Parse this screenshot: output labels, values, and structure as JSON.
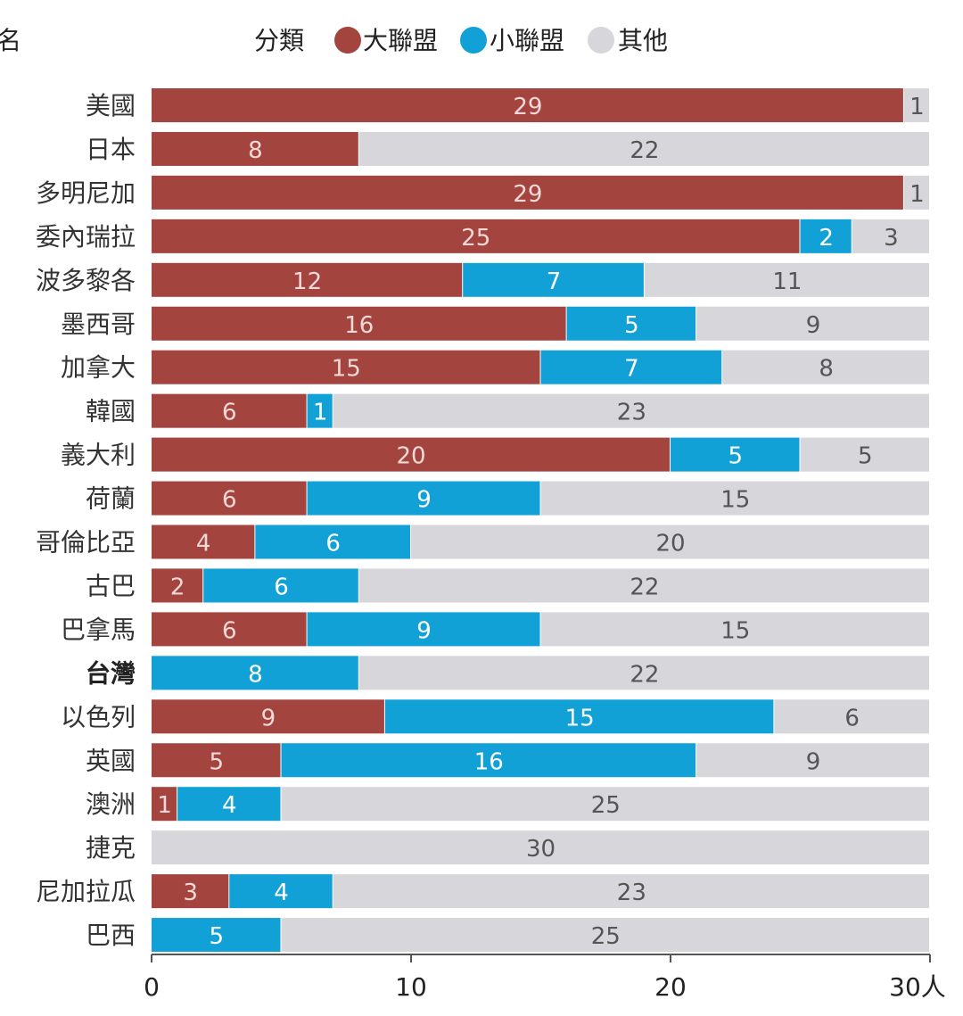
{
  "chart_data": {
    "type": "bar",
    "orientation": "horizontal",
    "stacked": true,
    "title_fragment": "名",
    "legend": {
      "title": "分類",
      "position": "top",
      "entries": [
        {
          "label": "大聯盟",
          "color": "#a3443f"
        },
        {
          "label": "小聯盟",
          "color": "#11a1d6"
        },
        {
          "label": "其他",
          "color": "#d6d6db"
        }
      ]
    },
    "categories": [
      "美國",
      "日本",
      "多明尼加",
      "委內瑞拉",
      "波多黎各",
      "墨西哥",
      "加拿大",
      "韓國",
      "義大利",
      "荷蘭",
      "哥倫比亞",
      "古巴",
      "巴拿馬",
      "台灣",
      "以色列",
      "英國",
      "澳洲",
      "捷克",
      "尼加拉瓜",
      "巴西"
    ],
    "highlight_category": "台灣",
    "series": [
      {
        "name": "大聯盟",
        "color": "#a3443f",
        "label_color": "#f2d8d6",
        "values": [
          29,
          8,
          29,
          25,
          12,
          16,
          15,
          6,
          20,
          6,
          4,
          2,
          6,
          0,
          9,
          5,
          1,
          0,
          3,
          0
        ]
      },
      {
        "name": "小聯盟",
        "color": "#11a1d6",
        "label_color": "#ffffff",
        "values": [
          0,
          0,
          0,
          2,
          7,
          5,
          7,
          1,
          5,
          9,
          6,
          6,
          9,
          8,
          15,
          16,
          4,
          0,
          4,
          5
        ]
      },
      {
        "name": "其他",
        "color": "#d6d6db",
        "label_color": "#555555",
        "values": [
          1,
          22,
          1,
          3,
          11,
          9,
          8,
          23,
          5,
          15,
          20,
          22,
          15,
          22,
          6,
          9,
          25,
          30,
          23,
          25
        ]
      }
    ],
    "xlim": [
      0,
      30
    ],
    "x_ticks": [
      {
        "value": 0,
        "label": "0"
      },
      {
        "value": 10,
        "label": "10"
      },
      {
        "value": 20,
        "label": "20"
      },
      {
        "value": 30,
        "label": "30人"
      }
    ],
    "grid": false
  }
}
